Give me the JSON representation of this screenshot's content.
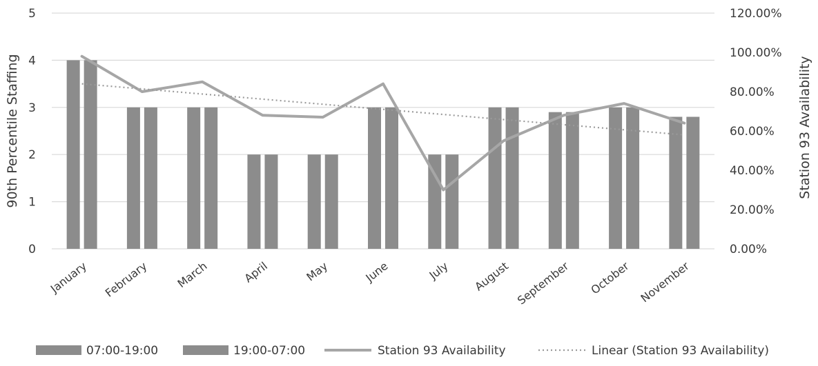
{
  "chart_data": {
    "type": "bar",
    "title": "",
    "categories": [
      "January",
      "February",
      "March",
      "April",
      "May",
      "June",
      "July",
      "August",
      "September",
      "October",
      "November"
    ],
    "series": [
      {
        "name": "07:00-19:00",
        "type": "bar",
        "axis": "left",
        "values": [
          4,
          3,
          3,
          2,
          2,
          3,
          2,
          3,
          2.9,
          3,
          2.8
        ]
      },
      {
        "name": "19:00-07:00",
        "type": "bar",
        "axis": "left",
        "values": [
          4,
          3,
          3,
          2,
          2,
          3,
          2,
          3,
          2.9,
          3,
          2.8
        ]
      },
      {
        "name": "Station 93 Availability",
        "type": "line",
        "axis": "right",
        "values": [
          0.98,
          0.8,
          0.85,
          0.68,
          0.67,
          0.84,
          0.3,
          0.55,
          0.68,
          0.74,
          0.64
        ]
      },
      {
        "name": "Linear (Station 93 Availability)",
        "type": "trendline",
        "axis": "right",
        "values": [
          0.84,
          0.814,
          0.788,
          0.762,
          0.736,
          0.71,
          0.684,
          0.658,
          0.632,
          0.606,
          0.58
        ]
      }
    ],
    "y_left": {
      "label": "90th Percentile Staffing",
      "lim": [
        0,
        5
      ],
      "ticks": [
        "0",
        "1",
        "2",
        "3",
        "4",
        "5"
      ]
    },
    "y_right": {
      "label": "Station 93 Availability",
      "lim": [
        0,
        1.2
      ],
      "ticks": [
        "0.00%",
        "20.00%",
        "40.00%",
        "60.00%",
        "80.00%",
        "100.00%",
        "120.00%"
      ]
    },
    "grid": true,
    "legend_position": "bottom",
    "colors": {
      "bar": "#8c8c8c",
      "line": "#a6a6a6",
      "trend": "#9a9a9a",
      "grid": "#d9d9d9",
      "text": "#3a3a3a"
    }
  }
}
